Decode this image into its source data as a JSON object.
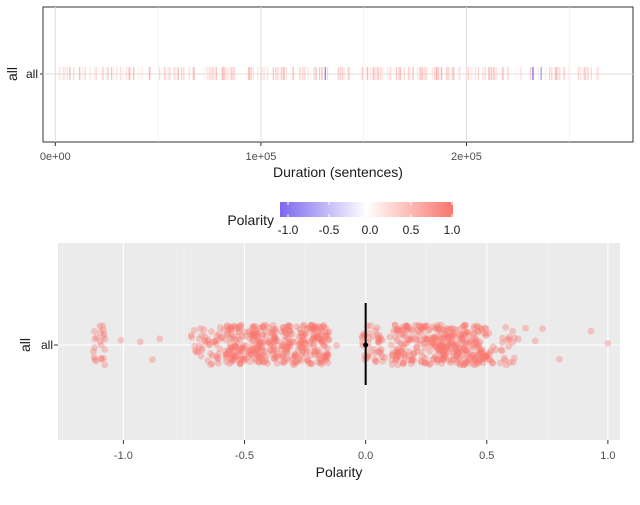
{
  "chart_data": [
    {
      "type": "strip",
      "xlabel": "Duration (sentences)",
      "ylabel": "all",
      "y_category": "all",
      "xlim": [
        -6000,
        281000
      ],
      "x_ticks": [
        0,
        100000,
        200000
      ],
      "x_tick_labels": [
        "0e+00",
        "1e+05",
        "2e+05"
      ],
      "data_range": [
        0,
        265000
      ],
      "grid": true,
      "background": "#ffffff",
      "color_encodes": "Polarity",
      "dark_marks": [
        {
          "x": 131000,
          "polarity": -0.8
        },
        {
          "x": 232000,
          "polarity": -0.9
        },
        {
          "x": 236000,
          "polarity": -0.6
        }
      ]
    },
    {
      "type": "jitter-scatter",
      "xlabel": "Polarity",
      "ylabel": "all",
      "y_category": "all",
      "xlim": [
        -1.27,
        1.05
      ],
      "x_ticks": [
        -1.0,
        -0.5,
        0.0,
        0.5,
        1.0
      ],
      "x_tick_labels": [
        "-1.0",
        "-0.5",
        "0.0",
        "0.5",
        "1.0"
      ],
      "grid": true,
      "background": "#ebebeb",
      "point_color": "#f8766d",
      "clusters": [
        {
          "center": -1.1,
          "width": 0.03,
          "count": 22
        },
        {
          "center": -0.64,
          "width": 0.08,
          "count": 60
        },
        {
          "center": -0.46,
          "width": 0.1,
          "count": 180
        },
        {
          "center": -0.25,
          "width": 0.1,
          "count": 180
        },
        {
          "center": 0.0,
          "width": 0.015,
          "count": 18
        },
        {
          "center": 0.05,
          "width": 0.03,
          "count": 25
        },
        {
          "center": 0.2,
          "width": 0.1,
          "count": 140
        },
        {
          "center": 0.4,
          "width": 0.1,
          "count": 200
        },
        {
          "center": 0.56,
          "width": 0.06,
          "count": 30
        }
      ],
      "outliers": [
        -1.01,
        -0.93,
        -0.88,
        -0.85,
        -0.72,
        -0.12,
        0.1,
        0.27,
        0.63,
        0.66,
        0.7,
        0.73,
        0.8,
        0.93,
        1.0
      ],
      "mean": 0.0,
      "interval": [
        -0.09,
        0.09
      ]
    }
  ],
  "legend": {
    "title": "Polarity",
    "ticks": [
      -1.0,
      -0.5,
      0.0,
      0.5,
      1.0
    ],
    "tick_labels": [
      "-1.0",
      "-0.5",
      "0.0",
      "0.5",
      "1.0"
    ],
    "colors": {
      "low": "#7b68ee",
      "mid": "#ffffff",
      "high": "#f8766d"
    }
  }
}
